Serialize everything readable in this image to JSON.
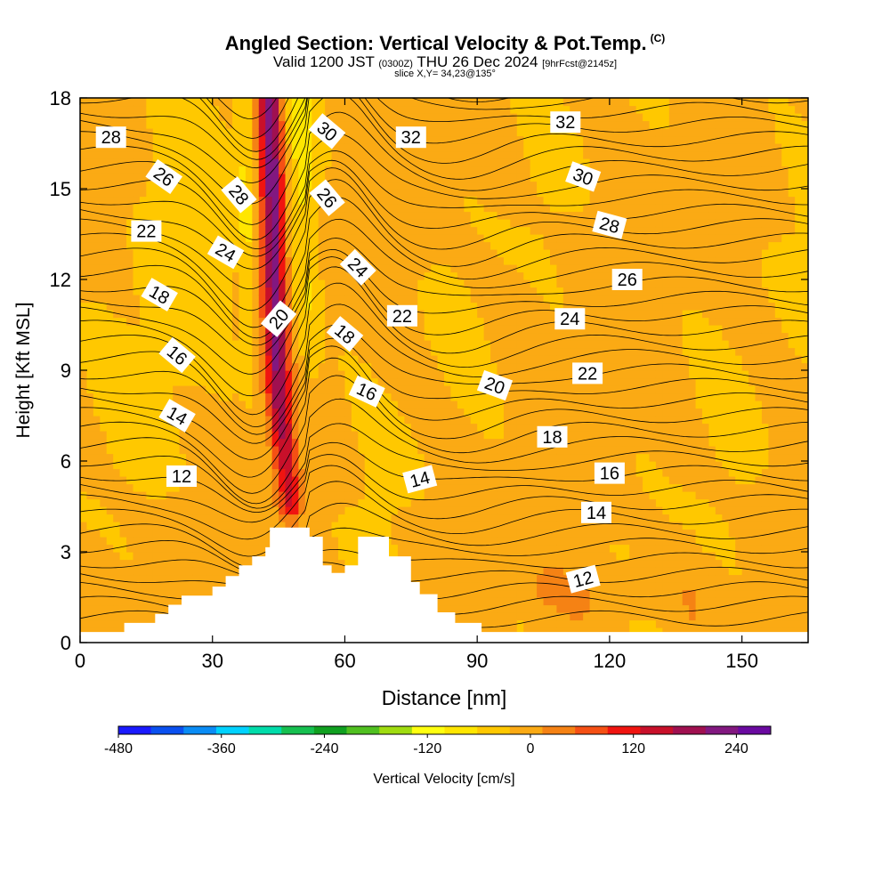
{
  "header": {
    "title": "Angled Section: Vertical Velocity & Pot.Temp.",
    "copyright": "(C)",
    "valid_main": "Valid 1200 JST",
    "valid_utc": "(0300Z)",
    "valid_date": "THU 26 Dec 2024",
    "forecast": "[9hrFcst@2145z]",
    "slice": "slice X,Y= 34,23@135°"
  },
  "chart_data": {
    "type": "heatmap",
    "title": "Angled Section: Vertical Velocity & Pot.Temp.",
    "xlabel": "Distance [nm]",
    "ylabel": "Height [Kft MSL]",
    "xlim": [
      0,
      165
    ],
    "ylim": [
      0,
      18
    ],
    "x_ticks": [
      0,
      30,
      60,
      90,
      120,
      150
    ],
    "y_ticks": [
      0,
      3,
      6,
      9,
      12,
      15,
      18
    ],
    "colorbar": {
      "label": "Vertical Velocity [cm/s]",
      "min": -480,
      "max": 280,
      "step": 40,
      "tick_values": [
        -480,
        -360,
        -240,
        -120,
        0,
        120,
        240
      ],
      "colors": [
        "#1a1aff",
        "#0a50f0",
        "#0a8cf5",
        "#00d2ff",
        "#00dcaa",
        "#16c050",
        "#10a020",
        "#50c020",
        "#a0dc10",
        "#ffff10",
        "#ffe600",
        "#ffc800",
        "#fbaa14",
        "#f58214",
        "#f55014",
        "#f01410",
        "#c8102a",
        "#a01050",
        "#821880",
        "#6a0aa0"
      ]
    },
    "cross_section": {
      "terrain": [
        [
          0,
          0.35
        ],
        [
          10,
          0.35
        ],
        [
          10,
          0.65
        ],
        [
          17,
          0.65
        ],
        [
          17,
          0.95
        ],
        [
          20,
          0.95
        ],
        [
          20,
          1.25
        ],
        [
          23,
          1.25
        ],
        [
          23,
          1.55
        ],
        [
          30,
          1.55
        ],
        [
          30,
          1.85
        ],
        [
          33,
          1.85
        ],
        [
          33,
          2.2
        ],
        [
          36,
          2.2
        ],
        [
          36,
          2.55
        ],
        [
          39,
          2.55
        ],
        [
          39,
          2.85
        ],
        [
          42,
          2.85
        ],
        [
          42,
          3.15
        ],
        [
          43,
          3.15
        ],
        [
          43,
          3.8
        ],
        [
          52,
          3.8
        ],
        [
          52,
          3.5
        ],
        [
          55,
          3.5
        ],
        [
          55,
          2.55
        ],
        [
          57,
          2.55
        ],
        [
          57,
          2.3
        ],
        [
          60,
          2.3
        ],
        [
          60,
          2.55
        ],
        [
          63,
          2.55
        ],
        [
          63,
          3.5
        ],
        [
          70,
          3.5
        ],
        [
          70,
          2.85
        ],
        [
          75,
          2.85
        ],
        [
          75,
          2.0
        ],
        [
          77,
          2.0
        ],
        [
          77,
          1.6
        ],
        [
          81,
          1.6
        ],
        [
          81,
          1.0
        ],
        [
          85,
          1.0
        ],
        [
          85,
          0.65
        ],
        [
          91,
          0.65
        ],
        [
          91,
          0.35
        ],
        [
          165,
          0.35
        ]
      ],
      "updraft_core": [
        [
          48,
          4.2
        ],
        [
          45,
          8
        ],
        [
          44,
          12
        ],
        [
          43,
          18
        ]
      ],
      "theta_labels": [
        {
          "text": "28",
          "x": 7,
          "y": 16.7,
          "rot": 0
        },
        {
          "text": "26",
          "x": 19,
          "y": 15.4,
          "rot": 35
        },
        {
          "text": "28",
          "x": 36,
          "y": 14.8,
          "rot": 50
        },
        {
          "text": "30",
          "x": 56,
          "y": 16.9,
          "rot": 40
        },
        {
          "text": "32",
          "x": 75,
          "y": 16.7,
          "rot": 0
        },
        {
          "text": "32",
          "x": 110,
          "y": 17.2,
          "rot": 0
        },
        {
          "text": "30",
          "x": 114,
          "y": 15.4,
          "rot": 20
        },
        {
          "text": "28",
          "x": 120,
          "y": 13.8,
          "rot": 15
        },
        {
          "text": "26",
          "x": 124,
          "y": 12.0,
          "rot": 0
        },
        {
          "text": "24",
          "x": 111,
          "y": 10.7,
          "rot": 0
        },
        {
          "text": "22",
          "x": 115,
          "y": 8.9,
          "rot": 0
        },
        {
          "text": "20",
          "x": 94,
          "y": 8.5,
          "rot": 20
        },
        {
          "text": "18",
          "x": 107,
          "y": 6.8,
          "rot": 0
        },
        {
          "text": "16",
          "x": 120,
          "y": 5.6,
          "rot": 0
        },
        {
          "text": "14",
          "x": 117,
          "y": 4.3,
          "rot": 0
        },
        {
          "text": "12",
          "x": 114,
          "y": 2.1,
          "rot": -15
        },
        {
          "text": "22",
          "x": 15,
          "y": 13.6,
          "rot": 0
        },
        {
          "text": "24",
          "x": 33,
          "y": 12.9,
          "rot": 30
        },
        {
          "text": "26",
          "x": 56,
          "y": 14.7,
          "rot": 50
        },
        {
          "text": "24",
          "x": 63,
          "y": 12.4,
          "rot": 45
        },
        {
          "text": "22",
          "x": 73,
          "y": 10.8,
          "rot": 0
        },
        {
          "text": "20",
          "x": 45,
          "y": 10.7,
          "rot": -50
        },
        {
          "text": "18",
          "x": 18,
          "y": 11.5,
          "rot": 30
        },
        {
          "text": "18",
          "x": 60,
          "y": 10.2,
          "rot": 40
        },
        {
          "text": "16",
          "x": 22,
          "y": 9.5,
          "rot": 40
        },
        {
          "text": "16",
          "x": 65,
          "y": 8.3,
          "rot": 25
        },
        {
          "text": "14",
          "x": 22,
          "y": 7.5,
          "rot": 30
        },
        {
          "text": "14",
          "x": 77,
          "y": 5.4,
          "rot": -15
        },
        {
          "text": "12",
          "x": 23,
          "y": 5.5,
          "rot": 0
        }
      ]
    }
  }
}
